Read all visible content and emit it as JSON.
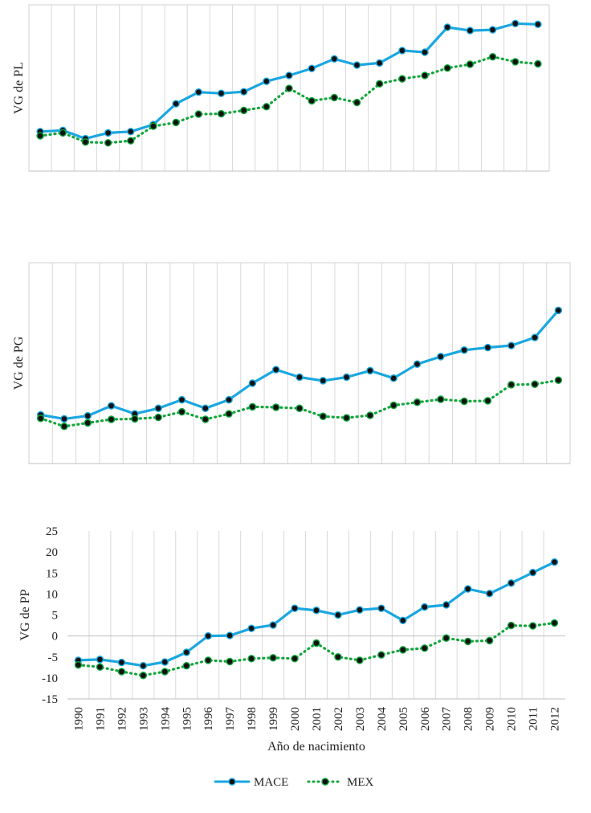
{
  "colors": {
    "mace": "#1aa7e0",
    "mex": "#11a63b",
    "marker_fill": "#111111",
    "grid": "#d9d9d9",
    "axis": "#bfbfbf",
    "frame": "#d0d0d0",
    "text": "#222222"
  },
  "legend": {
    "items": [
      {
        "label": "MACE",
        "style": "solid"
      },
      {
        "label": "MEX",
        "style": "dotted"
      }
    ]
  },
  "chart_data": [
    {
      "type": "line",
      "ylabel": "VG de PL",
      "xlabel": "",
      "y_tick_labels_shown": false,
      "x_tick_labels_shown": false,
      "grid": "vertical",
      "categories": [
        "1990",
        "1991",
        "1992",
        "1993",
        "1994",
        "1995",
        "1996",
        "1997",
        "1998",
        "1999",
        "2000",
        "2001",
        "2002",
        "2003",
        "2004",
        "2005",
        "2006",
        "2007",
        "2008",
        "2009",
        "2010",
        "2011",
        "2012"
      ],
      "series": [
        {
          "name": "MACE",
          "values": [
            -5.5,
            -5.2,
            -7.2,
            -5.8,
            -5.5,
            -3.8,
            1.2,
            4.0,
            3.7,
            4.1,
            6.6,
            8.0,
            9.7,
            12.0,
            10.5,
            11.0,
            14.0,
            13.6,
            19.6,
            18.8,
            19.0,
            20.5,
            20.3
          ]
        },
        {
          "name": "MEX",
          "values": [
            -6.5,
            -5.8,
            -8.0,
            -8.2,
            -7.7,
            -4.2,
            -3.3,
            -1.3,
            -1.2,
            -0.4,
            0.5,
            4.9,
            1.9,
            2.7,
            1.5,
            6.0,
            7.2,
            8.0,
            9.8,
            10.7,
            12.5,
            11.3,
            10.8
          ]
        }
      ],
      "ylim": [
        -15,
        25
      ]
    },
    {
      "type": "line",
      "ylabel": "VG de PG",
      "xlabel": "",
      "y_tick_labels_shown": false,
      "x_tick_labels_shown": false,
      "grid": "vertical",
      "categories": [
        "1990",
        "1991",
        "1992",
        "1993",
        "1994",
        "1995",
        "1996",
        "1997",
        "1998",
        "1999",
        "2000",
        "2001",
        "2002",
        "2003",
        "2004",
        "2005",
        "2006",
        "2007",
        "2008",
        "2009",
        "2010",
        "2011",
        "2012"
      ],
      "series": [
        {
          "name": "MACE",
          "values": [
            -5.3,
            -6.1,
            -5.5,
            -3.5,
            -5.1,
            -4.0,
            -2.3,
            -4.0,
            -2.3,
            1.0,
            3.7,
            2.2,
            1.5,
            2.2,
            3.5,
            2.0,
            4.8,
            6.3,
            7.6,
            8.1,
            8.5,
            10.1,
            15.5
          ]
        },
        {
          "name": "MEX",
          "values": [
            -6.0,
            -7.6,
            -6.9,
            -6.2,
            -6.1,
            -5.8,
            -4.7,
            -6.2,
            -5.1,
            -3.7,
            -3.8,
            -4.0,
            -5.6,
            -5.9,
            -5.4,
            -3.4,
            -2.8,
            -2.2,
            -2.6,
            -2.5,
            0.7,
            0.8,
            1.6
          ]
        }
      ],
      "ylim": [
        -15,
        25
      ]
    },
    {
      "type": "line",
      "ylabel": "VG de PP",
      "xlabel": "Año de nacimiento",
      "categories": [
        "1990",
        "1991",
        "1992",
        "1993",
        "1994",
        "1995",
        "1996",
        "1997",
        "1998",
        "1999",
        "2000",
        "2001",
        "2002",
        "2003",
        "2004",
        "2005",
        "2006",
        "2007",
        "2008",
        "2009",
        "2010",
        "2011",
        "2012"
      ],
      "ylim": [
        -15,
        25
      ],
      "yticks": [
        -15,
        -10,
        -5,
        0,
        5,
        10,
        15,
        20,
        25
      ],
      "grid": "vertical",
      "series": [
        {
          "name": "MACE",
          "values": [
            -5.8,
            -5.6,
            -6.3,
            -7.1,
            -6.2,
            -3.9,
            0.0,
            0.1,
            1.8,
            2.6,
            6.6,
            6.1,
            5.0,
            6.2,
            6.6,
            3.7,
            6.9,
            7.4,
            11.2,
            10.1,
            12.6,
            15.1,
            17.6
          ]
        },
        {
          "name": "MEX",
          "values": [
            -6.9,
            -7.4,
            -8.5,
            -9.4,
            -8.5,
            -7.1,
            -5.8,
            -6.1,
            -5.4,
            -5.2,
            -5.4,
            -1.7,
            -5.0,
            -5.8,
            -4.5,
            -3.3,
            -2.9,
            -0.5,
            -1.3,
            -1.1,
            2.5,
            2.4,
            3.1
          ]
        }
      ]
    }
  ]
}
